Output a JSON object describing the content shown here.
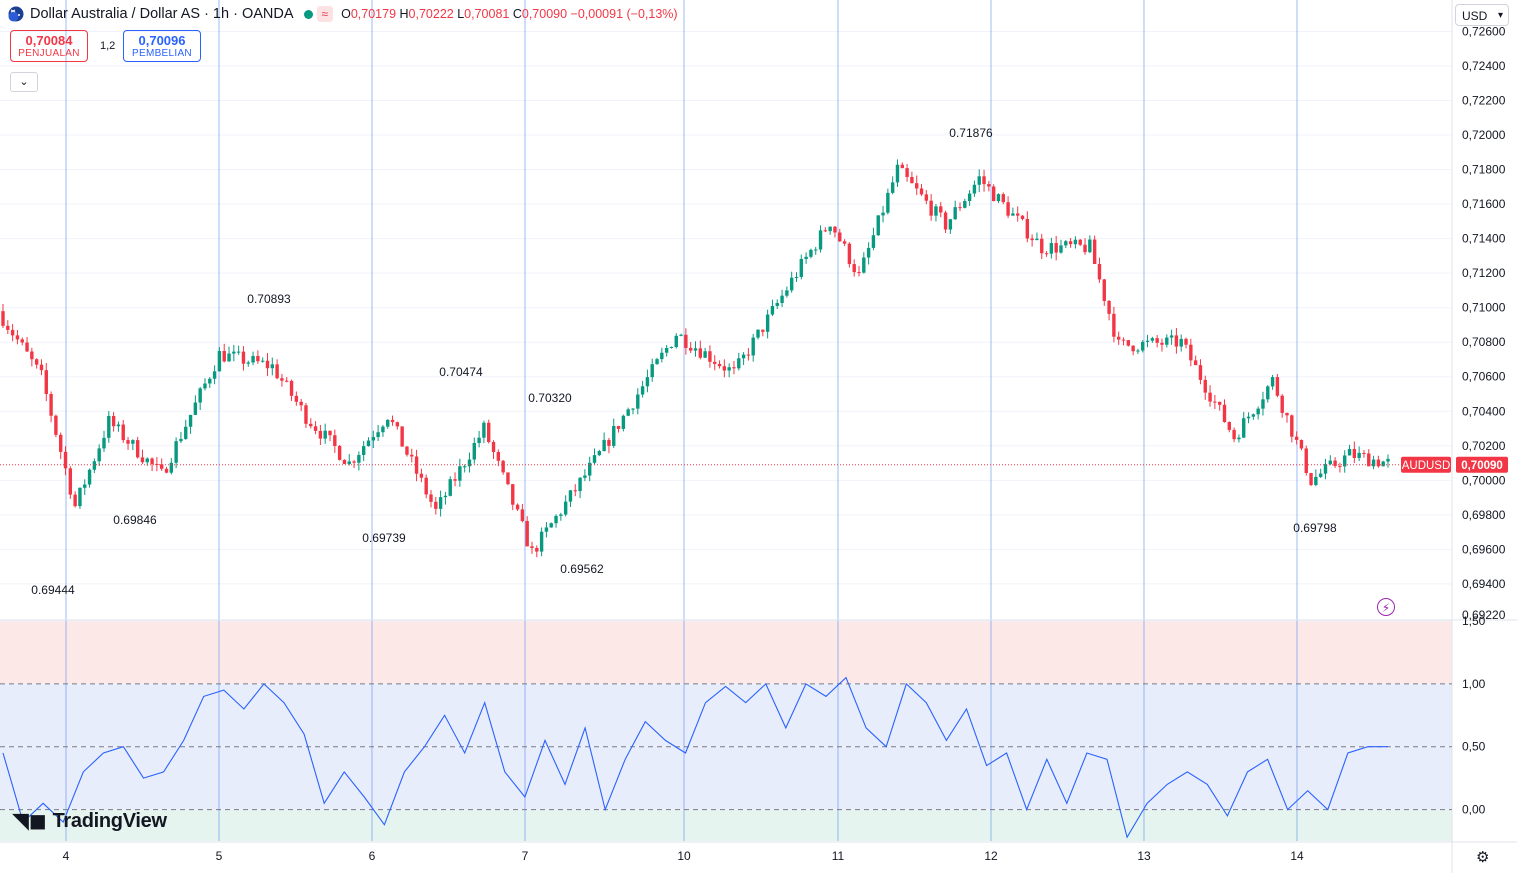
{
  "header": {
    "title": "Dollar Australia / Dollar AS · 1h · OANDA",
    "flag_symbol": "≈",
    "ohlc": {
      "o_label": "O",
      "o": "0,70179",
      "h_label": "H",
      "h": "0,70222",
      "l_label": "L",
      "l": "0,70081",
      "c_label": "C",
      "c": "0,70090",
      "change": "−0,00091 (−0,13%)"
    }
  },
  "trade": {
    "sell_price": "0,70084",
    "sell_label": "PENJUALAN",
    "spread": "1,2",
    "buy_price": "0,70096",
    "buy_label": "PEMBELIAN"
  },
  "currency": {
    "selected": "USD"
  },
  "logo": {
    "text": "TradingView"
  },
  "colors": {
    "up": "#089981",
    "down": "#f23645",
    "oscillator": "#2962ff",
    "zone_high": "#fde8e8",
    "zone_mid": "#e8edfb",
    "zone_low": "#e6f4ef"
  },
  "chart_data": [
    {
      "type": "candlestick",
      "symbol": "AUDUSD",
      "last_price": "0,70090",
      "ylim": [
        0.6922,
        0.7262
      ],
      "y_ticks": [
        "0,72600",
        "0,72400",
        "0,72200",
        "0,72000",
        "0,71800",
        "0,71600",
        "0,71400",
        "0,71200",
        "0,71000",
        "0,70800",
        "0,70600",
        "0,70400",
        "0,70200",
        "0,70000",
        "0,69800",
        "0,69600",
        "0,69400",
        "0,69220"
      ],
      "x_ticks": [
        "4",
        "5",
        "6",
        "7",
        "10",
        "11",
        "12",
        "13",
        "14"
      ],
      "annotations": [
        {
          "label": "0.69444",
          "type": "low"
        },
        {
          "label": "0.69846",
          "type": "low"
        },
        {
          "label": "0.70893",
          "type": "high"
        },
        {
          "label": "0.69739",
          "type": "low"
        },
        {
          "label": "0.70474",
          "type": "high"
        },
        {
          "label": "0.70320",
          "type": "high"
        },
        {
          "label": "0.69562",
          "type": "low"
        },
        {
          "label": "0.71876",
          "type": "high"
        },
        {
          "label": "0.69798",
          "type": "low"
        }
      ],
      "anchors": [
        {
          "x": 0,
          "price": 0.7094
        },
        {
          "x": 8,
          "price": 0.706
        },
        {
          "x": 15,
          "price": 0.6985
        },
        {
          "x": 22,
          "price": 0.7034
        },
        {
          "x": 33,
          "price": 0.7003
        },
        {
          "x": 45,
          "price": 0.7073
        },
        {
          "x": 56,
          "price": 0.7066
        },
        {
          "x": 63,
          "price": 0.7037
        },
        {
          "x": 72,
          "price": 0.701
        },
        {
          "x": 80,
          "price": 0.7038
        },
        {
          "x": 90,
          "price": 0.6982
        },
        {
          "x": 100,
          "price": 0.703
        },
        {
          "x": 110,
          "price": 0.6958
        },
        {
          "x": 124,
          "price": 0.7015
        },
        {
          "x": 140,
          "price": 0.7085
        },
        {
          "x": 152,
          "price": 0.7062
        },
        {
          "x": 165,
          "price": 0.712
        },
        {
          "x": 172,
          "price": 0.715
        },
        {
          "x": 178,
          "price": 0.7118
        },
        {
          "x": 186,
          "price": 0.718
        },
        {
          "x": 196,
          "price": 0.7148
        },
        {
          "x": 203,
          "price": 0.7175
        },
        {
          "x": 216,
          "price": 0.7135
        },
        {
          "x": 226,
          "price": 0.7135
        },
        {
          "x": 232,
          "price": 0.7078
        },
        {
          "x": 245,
          "price": 0.708
        },
        {
          "x": 256,
          "price": 0.7025
        },
        {
          "x": 264,
          "price": 0.7058
        },
        {
          "x": 272,
          "price": 0.7
        },
        {
          "x": 280,
          "price": 0.7015
        },
        {
          "x": 288,
          "price": 0.701
        }
      ]
    },
    {
      "type": "line",
      "name": "oscillator",
      "ylim": [
        -0.25,
        1.5
      ],
      "y_ticks": [
        "1,50",
        "1,00",
        "0,50",
        "0,00"
      ],
      "levels": [
        1.0,
        0.5,
        0.0
      ],
      "values": [
        0.45,
        -0.1,
        0.05,
        -0.1,
        0.3,
        0.45,
        0.5,
        0.25,
        0.3,
        0.55,
        0.9,
        0.95,
        0.8,
        1.0,
        0.85,
        0.6,
        0.05,
        0.3,
        0.1,
        -0.12,
        0.3,
        0.5,
        0.75,
        0.45,
        0.85,
        0.3,
        0.1,
        0.55,
        0.2,
        0.65,
        0.0,
        0.4,
        0.7,
        0.55,
        0.45,
        0.85,
        0.98,
        0.85,
        1.0,
        0.65,
        1.0,
        0.9,
        1.05,
        0.65,
        0.5,
        1.0,
        0.85,
        0.55,
        0.8,
        0.35,
        0.45,
        0.0,
        0.4,
        0.05,
        0.45,
        0.4,
        -0.22,
        0.05,
        0.2,
        0.3,
        0.2,
        -0.05,
        0.3,
        0.4,
        0.0,
        0.15,
        0.0,
        0.45,
        0.5,
        0.5
      ]
    }
  ]
}
